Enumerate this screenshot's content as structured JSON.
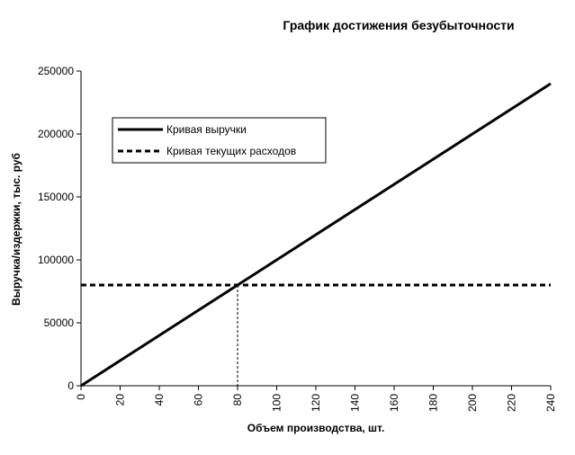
{
  "chart_data": {
    "type": "line",
    "title": "График достижения безубыточности",
    "xlabel": "Объем производства, шт.",
    "ylabel": "Выручка/издержки, тыс. руб",
    "xlim": [
      0,
      240
    ],
    "ylim": [
      0,
      250000
    ],
    "x_ticks": [
      "0",
      "20",
      "40",
      "60",
      "80",
      "100",
      "120",
      "140",
      "160",
      "180",
      "200",
      "220",
      "240"
    ],
    "y_ticks": [
      "0",
      "50000",
      "100000",
      "150000",
      "200000",
      "250000"
    ],
    "grid": false,
    "legend_position": "top-left",
    "series": [
      {
        "name": "Кривая выручки",
        "style": "solid",
        "color": "#000000",
        "x": [
          0,
          10,
          20,
          30,
          40,
          50,
          60,
          70,
          80,
          90,
          100,
          110,
          120,
          130,
          140,
          150,
          160,
          170,
          180,
          190,
          200,
          210,
          220,
          230,
          240
        ],
        "y": [
          0,
          10000,
          20000,
          30000,
          40000,
          50000,
          60000,
          70000,
          80000,
          90000,
          100000,
          110000,
          120000,
          130000,
          140000,
          150000,
          160000,
          170000,
          180000,
          190000,
          200000,
          210000,
          220000,
          230000,
          240000
        ]
      },
      {
        "name": "Кривая текущих расходов",
        "style": "dashed",
        "color": "#000000",
        "x": [
          0,
          240
        ],
        "y": [
          80000,
          80000
        ]
      }
    ],
    "annotations": [
      {
        "type": "vline",
        "x": 80,
        "y_from": 0,
        "y_to": 80000,
        "style": "dotted"
      }
    ]
  }
}
